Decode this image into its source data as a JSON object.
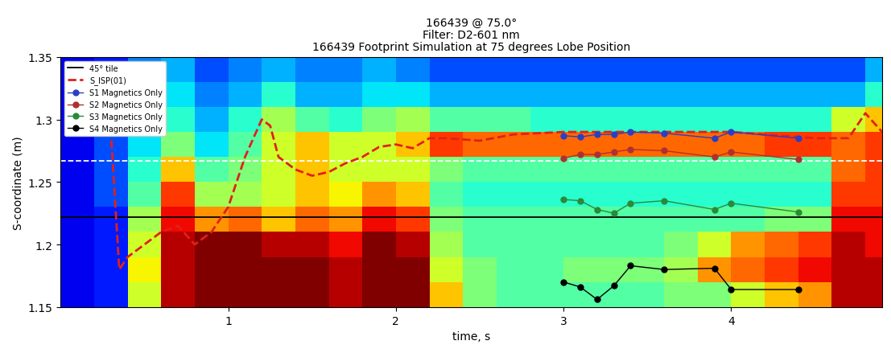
{
  "chart_data": {
    "type": "heatmap_with_lines",
    "title": "166439 @ 75.0°\nFilter: D2-601 nm\n166439 Footprint Simulation at 75 degrees Lobe Position",
    "x_label": "time, s",
    "y_label": "S-coordinate (m)",
    "xlim": [
      0,
      4.9
    ],
    "ylim": [
      1.15,
      1.35
    ],
    "xticks": [
      1,
      2,
      3,
      4
    ],
    "yticks": [
      1.15,
      1.2,
      1.25,
      1.3,
      1.35
    ],
    "legend": "upper left",
    "heatmap": {
      "x_edges": [
        0,
        0.2,
        0.4,
        0.6,
        0.8,
        1.0,
        1.2,
        1.4,
        1.6,
        1.8,
        2.0,
        2.2,
        2.4,
        2.6,
        2.8,
        3.0,
        3.2,
        3.4,
        3.6,
        3.8,
        4.0,
        4.2,
        4.4,
        4.6,
        4.8,
        4.9
      ],
      "y_edges": [
        1.15,
        1.17,
        1.19,
        1.21,
        1.23,
        1.25,
        1.27,
        1.29,
        1.31,
        1.33,
        1.35
      ],
      "clim": [
        0,
        1
      ],
      "cells": [
        [
          0.1,
          0.15,
          0.6,
          0.95,
          1,
          1,
          1,
          1,
          0.95,
          1,
          1,
          0.7,
          0.5,
          0.45,
          0.45,
          0.45,
          0.45,
          0.45,
          0.5,
          0.5,
          0.6,
          0.7,
          0.75,
          0.95,
          0.95
        ],
        [
          0.1,
          0.15,
          0.65,
          0.95,
          1,
          1,
          1,
          1,
          0.95,
          1,
          1,
          0.6,
          0.5,
          0.45,
          0.45,
          0.5,
          0.5,
          0.5,
          0.55,
          0.75,
          0.8,
          0.85,
          0.9,
          0.95,
          0.95
        ],
        [
          0.1,
          0.15,
          0.6,
          0.95,
          1,
          1,
          0.95,
          0.95,
          0.9,
          1,
          0.95,
          0.55,
          0.45,
          0.45,
          0.45,
          0.45,
          0.45,
          0.45,
          0.5,
          0.6,
          0.75,
          0.8,
          0.85,
          0.95,
          0.9
        ],
        [
          0.1,
          0.15,
          0.55,
          0.9,
          0.75,
          0.8,
          0.7,
          0.8,
          0.75,
          0.9,
          0.85,
          0.5,
          0.45,
          0.45,
          0.45,
          0.45,
          0.45,
          0.45,
          0.45,
          0.45,
          0.45,
          0.5,
          0.5,
          0.9,
          0.9
        ],
        [
          0.1,
          0.2,
          0.45,
          0.85,
          0.55,
          0.55,
          0.6,
          0.7,
          0.65,
          0.75,
          0.7,
          0.45,
          0.4,
          0.4,
          0.4,
          0.4,
          0.4,
          0.4,
          0.4,
          0.4,
          0.4,
          0.4,
          0.4,
          0.85,
          0.85
        ],
        [
          0.1,
          0.2,
          0.4,
          0.7,
          0.45,
          0.5,
          0.6,
          0.7,
          0.6,
          0.6,
          0.6,
          0.5,
          0.45,
          0.45,
          0.45,
          0.45,
          0.45,
          0.45,
          0.45,
          0.45,
          0.45,
          0.45,
          0.45,
          0.8,
          0.85
        ],
        [
          0.1,
          0.2,
          0.35,
          0.5,
          0.35,
          0.45,
          0.6,
          0.7,
          0.6,
          0.6,
          0.7,
          0.85,
          0.8,
          0.8,
          0.8,
          0.8,
          0.8,
          0.8,
          0.8,
          0.8,
          0.8,
          0.85,
          0.85,
          0.8,
          0.85
        ],
        [
          0.1,
          0.2,
          0.35,
          0.4,
          0.3,
          0.4,
          0.55,
          0.45,
          0.4,
          0.5,
          0.55,
          0.45,
          0.45,
          0.45,
          0.4,
          0.4,
          0.4,
          0.4,
          0.4,
          0.4,
          0.4,
          0.4,
          0.4,
          0.6,
          0.7
        ],
        [
          0.1,
          0.15,
          0.3,
          0.35,
          0.25,
          0.3,
          0.4,
          0.3,
          0.3,
          0.35,
          0.35,
          0.3,
          0.3,
          0.3,
          0.3,
          0.3,
          0.3,
          0.3,
          0.3,
          0.3,
          0.3,
          0.3,
          0.3,
          0.3,
          0.4
        ],
        [
          0.1,
          0.15,
          0.25,
          0.3,
          0.2,
          0.25,
          0.3,
          0.25,
          0.25,
          0.3,
          0.25,
          0.2,
          0.2,
          0.2,
          0.2,
          0.2,
          0.2,
          0.2,
          0.2,
          0.2,
          0.2,
          0.2,
          0.2,
          0.2,
          0.3
        ]
      ]
    },
    "reference_lines": [
      {
        "name": "45° tile",
        "y": 1.222,
        "color": "#000000",
        "line_style": "solid"
      },
      {
        "y": 1.267,
        "color": "#ffffff",
        "line_style": "dashed"
      }
    ],
    "series": [
      {
        "name": "S_ISP(01)",
        "color": "#e0201b",
        "line_style": "dashed",
        "marker": "none",
        "x": [
          0.25,
          0.3,
          0.35,
          0.4,
          0.5,
          0.6,
          0.7,
          0.8,
          0.9,
          1.0,
          1.1,
          1.2,
          1.25,
          1.3,
          1.4,
          1.5,
          1.6,
          1.7,
          1.8,
          1.9,
          2.0,
          2.1,
          2.2,
          2.3,
          2.5,
          2.7,
          3.0,
          3.5,
          4.0,
          4.5,
          4.7,
          4.8,
          4.9
        ],
        "values": [
          1.33,
          1.29,
          1.18,
          1.19,
          1.2,
          1.21,
          1.215,
          1.2,
          1.21,
          1.23,
          1.27,
          1.3,
          1.295,
          1.27,
          1.26,
          1.255,
          1.258,
          1.265,
          1.27,
          1.278,
          1.28,
          1.277,
          1.285,
          1.285,
          1.283,
          1.288,
          1.29,
          1.29,
          1.29,
          1.285,
          1.285,
          1.305,
          1.29
        ]
      },
      {
        "name": "S1 Magnetics Only",
        "color": "#2b3fc4",
        "line_style": "solid",
        "marker": "o",
        "x": [
          3.0,
          3.1,
          3.2,
          3.3,
          3.4,
          3.6,
          3.9,
          4.0,
          4.4
        ],
        "values": [
          1.287,
          1.286,
          1.288,
          1.288,
          1.29,
          1.289,
          1.285,
          1.29,
          1.285
        ]
      },
      {
        "name": "S2 Magnetics Only",
        "color": "#b03030",
        "line_style": "solid",
        "marker": "o",
        "x": [
          3.0,
          3.1,
          3.2,
          3.3,
          3.4,
          3.6,
          3.9,
          4.0,
          4.4
        ],
        "values": [
          1.269,
          1.272,
          1.272,
          1.274,
          1.276,
          1.275,
          1.27,
          1.274,
          1.268
        ]
      },
      {
        "name": "S3 Magnetics Only",
        "color": "#2a8a3a",
        "line_style": "solid",
        "marker": "o",
        "x": [
          3.0,
          3.1,
          3.2,
          3.3,
          3.4,
          3.6,
          3.9,
          4.0,
          4.4
        ],
        "values": [
          1.236,
          1.235,
          1.228,
          1.225,
          1.233,
          1.235,
          1.228,
          1.233,
          1.226
        ]
      },
      {
        "name": "S4 Magnetics Only",
        "color": "#000000",
        "line_style": "solid",
        "marker": "o",
        "x": [
          3.0,
          3.1,
          3.2,
          3.3,
          3.4,
          3.6,
          3.9,
          4.0,
          4.4
        ],
        "values": [
          1.17,
          1.166,
          1.156,
          1.167,
          1.183,
          1.18,
          1.181,
          1.164,
          1.164
        ]
      }
    ]
  }
}
